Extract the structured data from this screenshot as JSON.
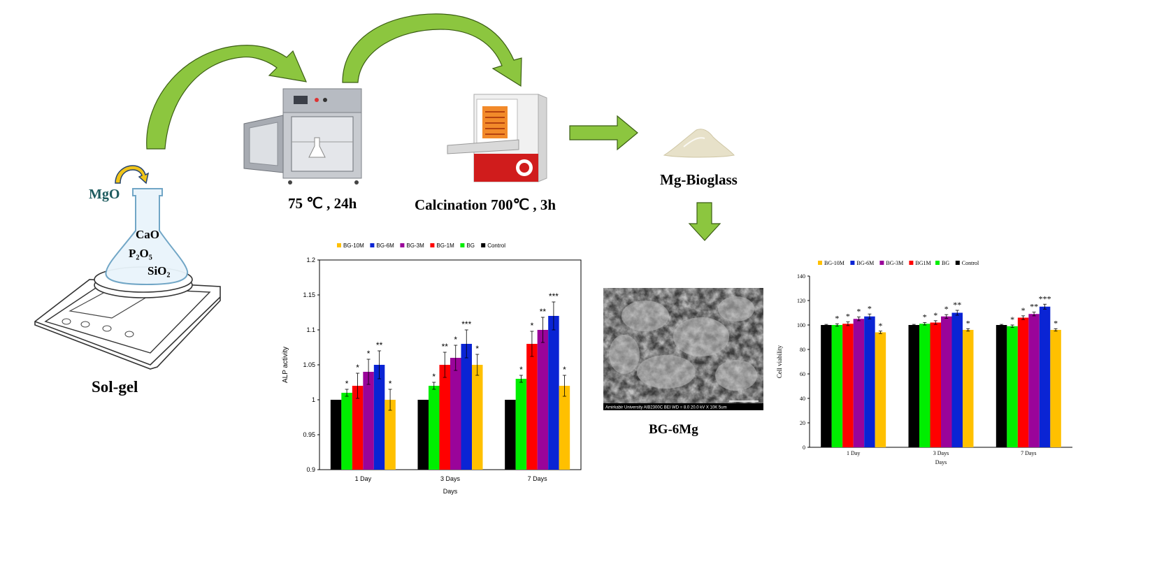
{
  "labels": {
    "mgo": "MgO",
    "cao": "CaO",
    "p2o5": "P₂O₅",
    "sio2": "SiO₂",
    "solgel": "Sol-gel",
    "drying": "75 ℃ , 24h",
    "calcination": "Calcination 700℃ , 3h",
    "product": "Mg-Bioglass",
    "sem_caption": "BG-6Mg",
    "sem_footer": "Amirkabir University     AIB2300C  BEI  WD = 8.0   20.0 kV  X 10K    5um"
  },
  "colors": {
    "arrow_green": "#8cc63f",
    "arrow_outline": "#3b5e14",
    "BG-10M": "#ffc000",
    "BG-6M": "#0a24d4",
    "BG-3M": "#9a049a",
    "BG-1M": "#ff0000",
    "BG": "#00ee00",
    "Control": "#000000"
  },
  "chart_data": [
    {
      "type": "bar",
      "categories": [
        "1 Day",
        "3 Days",
        "7 Days"
      ],
      "legend": [
        "BG-10M",
        "BG-6M",
        "BG-3M",
        "BG-1M",
        "BG",
        "Control"
      ],
      "series": [
        {
          "name": "Control",
          "values": [
            1.0,
            1.0,
            1.0
          ],
          "errors": [
            0,
            0,
            0
          ],
          "marks": [
            "",
            "",
            ""
          ]
        },
        {
          "name": "BG",
          "values": [
            1.01,
            1.02,
            1.03
          ],
          "errors": [
            0.005,
            0.005,
            0.005
          ],
          "marks": [
            "*",
            "*",
            "*"
          ]
        },
        {
          "name": "BG-1M",
          "values": [
            1.02,
            1.05,
            1.08
          ],
          "errors": [
            0.018,
            0.018,
            0.018
          ],
          "marks": [
            "*",
            "**",
            "*"
          ]
        },
        {
          "name": "BG-3M",
          "values": [
            1.04,
            1.06,
            1.1
          ],
          "errors": [
            0.018,
            0.018,
            0.018
          ],
          "marks": [
            "*",
            "*",
            "**"
          ]
        },
        {
          "name": "BG-6M",
          "values": [
            1.05,
            1.08,
            1.12
          ],
          "errors": [
            0.02,
            0.02,
            0.02
          ],
          "marks": [
            "**",
            "***",
            "***"
          ]
        },
        {
          "name": "BG-10M",
          "values": [
            1.0,
            1.05,
            1.02
          ],
          "errors": [
            0.015,
            0.015,
            0.015
          ],
          "marks": [
            "*",
            "*",
            "*"
          ]
        }
      ],
      "ylim": [
        0.9,
        1.2
      ],
      "yticks": [
        0.9,
        0.95,
        1,
        1.05,
        1.1,
        1.15,
        1.2
      ],
      "ytick_labels": [
        "0.9",
        "0.95",
        "1",
        "1.05",
        "1.1",
        "1.15",
        "1.2"
      ],
      "xlabel": "Days",
      "ylabel": "ALP activity",
      "grid": false,
      "legend_position": "top"
    },
    {
      "type": "bar",
      "categories": [
        "1 Day",
        "3 Days",
        "7 Days"
      ],
      "legend": [
        "BG-10M",
        "BG-6M",
        "BG-3M",
        "BG1M",
        "BG",
        "Control"
      ],
      "series": [
        {
          "name": "Control",
          "values": [
            100,
            100,
            100
          ],
          "errors": [
            0.5,
            0.5,
            0.5
          ],
          "marks": [
            "",
            "",
            ""
          ]
        },
        {
          "name": "BG",
          "values": [
            100,
            101,
            99
          ],
          "errors": [
            1,
            1,
            1
          ],
          "marks": [
            "*",
            "*",
            "*"
          ]
        },
        {
          "name": "BG1M",
          "values": [
            101,
            102,
            106
          ],
          "errors": [
            1.5,
            1.5,
            1.5
          ],
          "marks": [
            "*",
            "*",
            "*"
          ]
        },
        {
          "name": "BG-3M",
          "values": [
            105,
            107,
            109
          ],
          "errors": [
            1.5,
            1.5,
            1.5
          ],
          "marks": [
            "*",
            "*",
            "**"
          ]
        },
        {
          "name": "BG-6M",
          "values": [
            107,
            110,
            115
          ],
          "errors": [
            2,
            2,
            2
          ],
          "marks": [
            "*",
            "**",
            "***"
          ]
        },
        {
          "name": "BG-10M",
          "values": [
            94,
            96,
            96
          ],
          "errors": [
            1,
            1,
            1
          ],
          "marks": [
            "*",
            "*",
            "*"
          ]
        }
      ],
      "ylim": [
        0,
        140
      ],
      "yticks": [
        0,
        20,
        40,
        60,
        80,
        100,
        120,
        140
      ],
      "ytick_labels": [
        "0",
        "20",
        "40",
        "60",
        "80",
        "100",
        "120",
        "140"
      ],
      "xlabel": "Days",
      "ylabel": "Cell viability",
      "grid": false,
      "legend_position": "top"
    }
  ]
}
